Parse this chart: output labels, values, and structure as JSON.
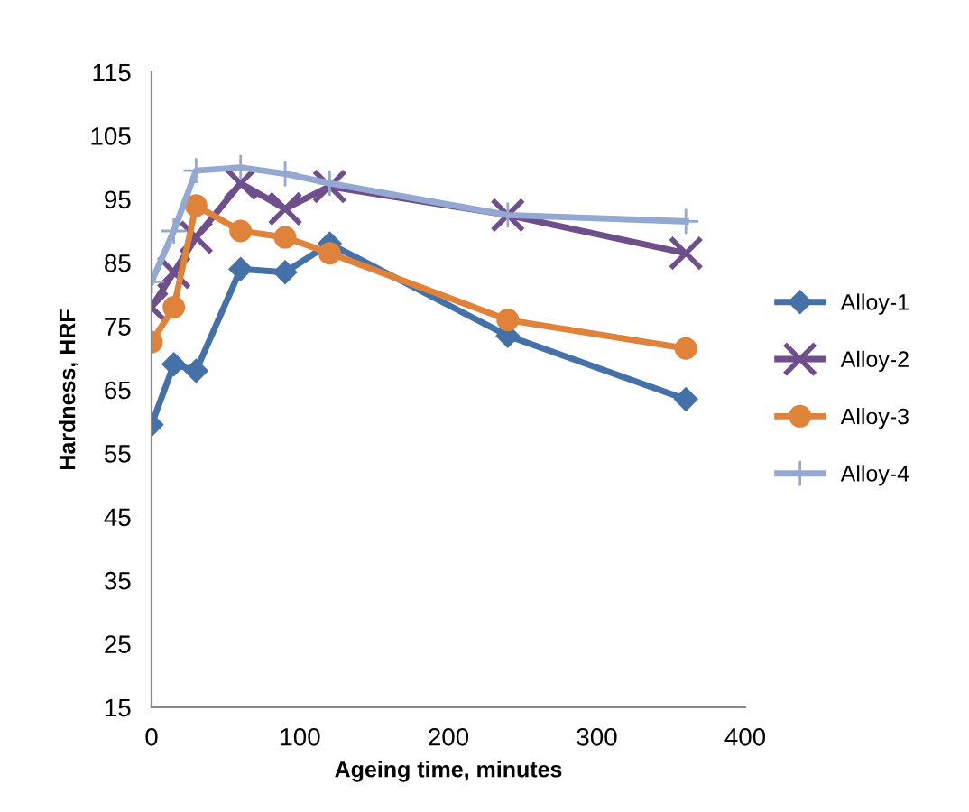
{
  "chart_data": {
    "type": "line",
    "xlabel": "Ageing time, minutes",
    "ylabel": "Hardness, HRF",
    "xlim": [
      0,
      400
    ],
    "xticks": [
      0,
      100,
      200,
      300,
      400
    ],
    "ylim": [
      15,
      115
    ],
    "yticks": [
      15,
      25,
      35,
      45,
      55,
      65,
      75,
      85,
      95,
      105,
      115
    ],
    "grid": false,
    "legend": "right",
    "line_style": "solid",
    "x": [
      0,
      15,
      30,
      60,
      90,
      120,
      240,
      360
    ],
    "series": [
      {
        "name": "Alloy-1",
        "color": "#4472a8",
        "marker": "diamond",
        "values": [
          59.5,
          69,
          68,
          84,
          83.5,
          88,
          73.5,
          63.5
        ]
      },
      {
        "name": "Alloy-2",
        "color": "#6e4f8c",
        "marker": "cross",
        "values": [
          78,
          83.5,
          89,
          97.5,
          93.5,
          97,
          92.5,
          86.5
        ]
      },
      {
        "name": "Alloy-3",
        "color": "#e0833a",
        "marker": "circle",
        "values": [
          72.5,
          78,
          94,
          90,
          89,
          86.5,
          76,
          71.5
        ]
      },
      {
        "name": "Alloy-4",
        "color": "#93a9d2",
        "marker": "plus",
        "values": [
          82,
          90,
          99.5,
          100,
          99,
          97.5,
          92.5,
          91.5
        ]
      }
    ]
  }
}
